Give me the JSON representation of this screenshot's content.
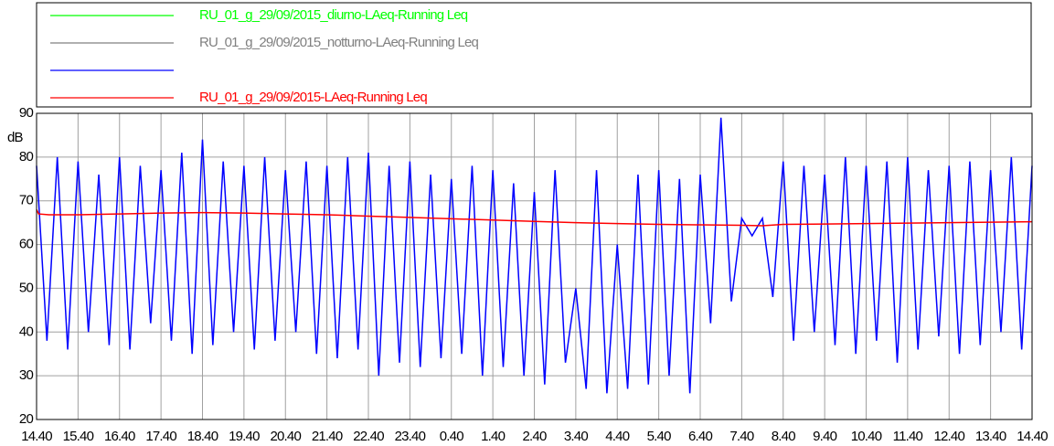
{
  "chart_data": {
    "type": "line",
    "ylabel": "dB",
    "xlim": [
      0,
      24
    ],
    "xticks": [
      {
        "value": 0,
        "label": "14.40"
      },
      {
        "value": 1,
        "label": "15.40"
      },
      {
        "value": 2,
        "label": "16.40"
      },
      {
        "value": 3,
        "label": "17.40"
      },
      {
        "value": 4,
        "label": "18.40"
      },
      {
        "value": 5,
        "label": "19.40"
      },
      {
        "value": 6,
        "label": "20.40"
      },
      {
        "value": 7,
        "label": "21.40"
      },
      {
        "value": 8,
        "label": "22.40"
      },
      {
        "value": 9,
        "label": "23.40"
      },
      {
        "value": 10,
        "label": "0.40"
      },
      {
        "value": 11,
        "label": "1.40"
      },
      {
        "value": 12,
        "label": "2.40"
      },
      {
        "value": 13,
        "label": "3.40"
      },
      {
        "value": 14,
        "label": "4.40"
      },
      {
        "value": 15,
        "label": "5.40"
      },
      {
        "value": 16,
        "label": "6.40"
      },
      {
        "value": 17,
        "label": "7.40"
      },
      {
        "value": 18,
        "label": "8.40"
      },
      {
        "value": 19,
        "label": "9.40"
      },
      {
        "value": 20,
        "label": "10.40"
      },
      {
        "value": 21,
        "label": "11.40"
      },
      {
        "value": 22,
        "label": "12.40"
      },
      {
        "value": 23,
        "label": "13.40"
      },
      {
        "value": 24,
        "label": "14.40"
      }
    ],
    "ylim": [
      20,
      90
    ],
    "yticks": [
      20,
      30,
      40,
      50,
      60,
      70,
      80,
      90
    ],
    "grid": true,
    "series": [
      {
        "name": "RU_01_g_29/09/2015_diurno-LAeq-Running Leq",
        "color": "#00ff00"
      },
      {
        "name": "RU_01_g_29/09/2015_notturno-LAeq-Running Leq",
        "color": "#808080"
      },
      {
        "color": "#0000ff",
        "x": [
          0,
          0.25,
          0.5,
          0.75,
          1,
          1.25,
          1.5,
          1.75,
          2,
          2.25,
          2.5,
          2.75,
          3,
          3.25,
          3.5,
          3.75,
          4,
          4.25,
          4.5,
          4.75,
          5,
          5.25,
          5.5,
          5.75,
          6,
          6.25,
          6.5,
          6.75,
          7,
          7.25,
          7.5,
          7.75,
          8,
          8.25,
          8.5,
          8.75,
          9,
          9.25,
          9.5,
          9.75,
          10,
          10.25,
          10.5,
          10.75,
          11,
          11.25,
          11.5,
          11.75,
          12,
          12.25,
          12.5,
          12.75,
          13,
          13.25,
          13.5,
          13.75,
          14,
          14.25,
          14.5,
          14.75,
          15,
          15.25,
          15.5,
          15.75,
          16,
          16.25,
          16.5,
          16.75,
          17,
          17.25,
          17.5,
          17.75,
          18,
          18.25,
          18.5,
          18.75,
          19,
          19.25,
          19.5,
          19.75,
          20,
          20.25,
          20.5,
          20.75,
          21,
          21.25,
          21.5,
          21.75,
          22,
          22.25,
          22.5,
          22.75,
          23,
          23.25,
          23.5,
          23.75,
          24
        ],
        "values": [
          78,
          38,
          80,
          36,
          79,
          40,
          76,
          37,
          80,
          36,
          78,
          42,
          77,
          38,
          81,
          35,
          84,
          37,
          79,
          40,
          78,
          36,
          80,
          38,
          77,
          40,
          79,
          35,
          78,
          34,
          80,
          36,
          81,
          30,
          78,
          33,
          79,
          32,
          76,
          34,
          75,
          35,
          78,
          30,
          77,
          32,
          74,
          30,
          72,
          28,
          77,
          33,
          50,
          27,
          77,
          26,
          60,
          27,
          76,
          28,
          77,
          30,
          75,
          26,
          76,
          42,
          89,
          47,
          66,
          62,
          66,
          48,
          79,
          38,
          78,
          40,
          76,
          37,
          80,
          35,
          78,
          38,
          79,
          33,
          80,
          36,
          77,
          39,
          78,
          35,
          79,
          37,
          77,
          40,
          80,
          36,
          78
        ]
      },
      {
        "name": "RU_01_g_29/09/2015-LAeq-Running Leq",
        "color": "#ff0000",
        "x": [
          0,
          0.05,
          0.3,
          1,
          2,
          3,
          4,
          5,
          6,
          7,
          8,
          9,
          10,
          11,
          12,
          13,
          14,
          15,
          16,
          17,
          17.5,
          18,
          19,
          20,
          21,
          22,
          23,
          24
        ],
        "values": [
          68,
          67,
          66.8,
          66.8,
          67,
          67.2,
          67.3,
          67.2,
          67,
          66.8,
          66.5,
          66.2,
          65.9,
          65.6,
          65.3,
          65,
          64.8,
          64.6,
          64.5,
          64.4,
          64.3,
          64.6,
          64.7,
          64.8,
          64.9,
          65,
          65.1,
          65.2
        ]
      }
    ]
  }
}
